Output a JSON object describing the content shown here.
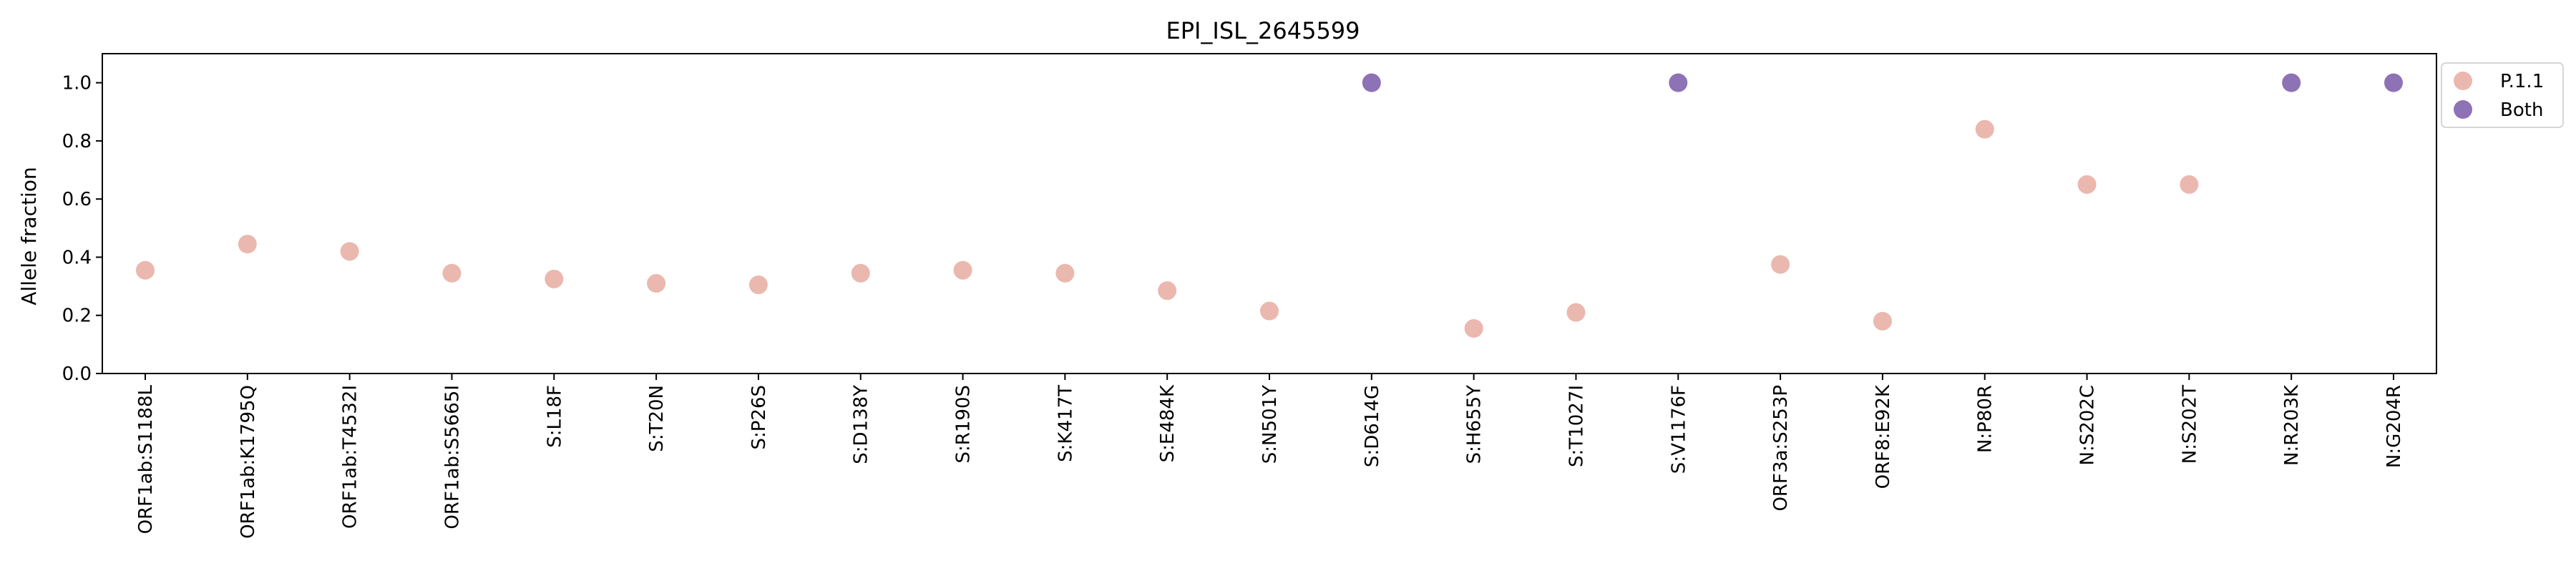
{
  "chart_data": {
    "type": "scatter",
    "title": "EPI_ISL_2645599",
    "xlabel": "",
    "ylabel": "Allele fraction",
    "ylim": [
      0.0,
      1.1
    ],
    "yticks": [
      "0.0",
      "0.2",
      "0.4",
      "0.6",
      "0.8",
      "1.0"
    ],
    "grid": false,
    "legend_position": "outside-top-right",
    "categories": [
      "ORF1ab:S1188L",
      "ORF1ab:K1795Q",
      "ORF1ab:T4532I",
      "ORF1ab:S5665I",
      "S:L18F",
      "S:T20N",
      "S:P26S",
      "S:D138Y",
      "S:R190S",
      "S:K417T",
      "S:E484K",
      "S:N501Y",
      "S:D614G",
      "S:H655Y",
      "S:T1027I",
      "S:V1176F",
      "ORF3a:S253P",
      "ORF8:E92K",
      "N:P80R",
      "N:S202C",
      "N:S202T",
      "N:R203K",
      "N:G204R"
    ],
    "series": [
      {
        "name": "P.1.1",
        "color": "#eab8ae",
        "points": [
          {
            "x": "ORF1ab:S1188L",
            "y": 0.355
          },
          {
            "x": "ORF1ab:K1795Q",
            "y": 0.445
          },
          {
            "x": "ORF1ab:T4532I",
            "y": 0.42
          },
          {
            "x": "ORF1ab:S5665I",
            "y": 0.345
          },
          {
            "x": "S:L18F",
            "y": 0.325
          },
          {
            "x": "S:T20N",
            "y": 0.31
          },
          {
            "x": "S:P26S",
            "y": 0.305
          },
          {
            "x": "S:D138Y",
            "y": 0.345
          },
          {
            "x": "S:R190S",
            "y": 0.355
          },
          {
            "x": "S:K417T",
            "y": 0.345
          },
          {
            "x": "S:E484K",
            "y": 0.285
          },
          {
            "x": "S:N501Y",
            "y": 0.215
          },
          {
            "x": "S:H655Y",
            "y": 0.155
          },
          {
            "x": "S:T1027I",
            "y": 0.21
          },
          {
            "x": "ORF3a:S253P",
            "y": 0.375
          },
          {
            "x": "ORF8:E92K",
            "y": 0.18
          },
          {
            "x": "N:P80R",
            "y": 0.84
          },
          {
            "x": "N:S202C",
            "y": 0.65
          },
          {
            "x": "N:S202T",
            "y": 0.65
          }
        ]
      },
      {
        "name": "Both",
        "color": "#8e72b6",
        "points": [
          {
            "x": "S:D614G",
            "y": 1.0
          },
          {
            "x": "S:V1176F",
            "y": 1.0
          },
          {
            "x": "N:R203K",
            "y": 1.0
          },
          {
            "x": "N:G204R",
            "y": 1.0
          }
        ]
      }
    ]
  }
}
